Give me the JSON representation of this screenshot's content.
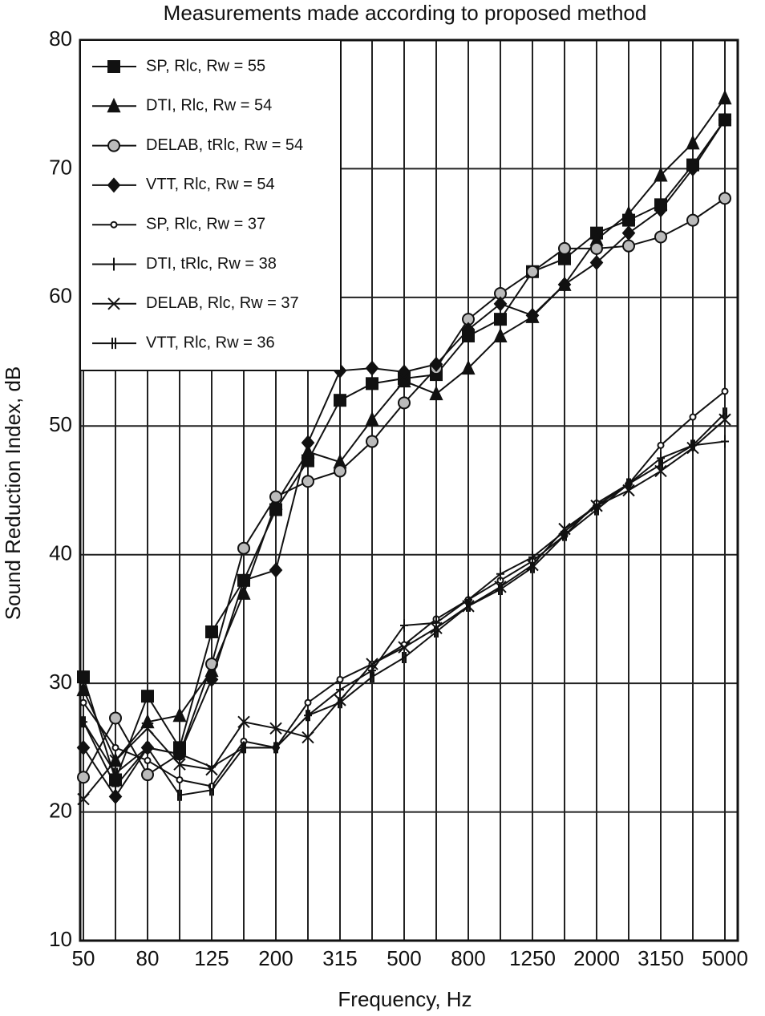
{
  "chart_data": {
    "type": "line",
    "title": "Measurements made according to proposed method",
    "x_label": "Frequency, Hz",
    "y_label": "Sound Reduction Index, dB",
    "categories": [
      50,
      null,
      80,
      null,
      125,
      null,
      200,
      null,
      315,
      null,
      500,
      null,
      800,
      null,
      1250,
      null,
      2000,
      null,
      3150,
      null,
      5000
    ],
    "ylim": [
      10,
      80
    ],
    "yticks": [
      10,
      20,
      30,
      40,
      50,
      60,
      70,
      80
    ],
    "grid": true,
    "legend": "upper left",
    "series": [
      {
        "name": "SP, Rlc, Rw = 55",
        "color": "#111",
        "marker": "square",
        "values": [
          30.5,
          22.5,
          29,
          25,
          34,
          38,
          43.5,
          47.3,
          52,
          53.3,
          53.7,
          54,
          57,
          58.3,
          62,
          63,
          65,
          66,
          67.2,
          70.3,
          73.8
        ]
      },
      {
        "name": "DTI, Rlc, Rw = 54",
        "color": "#111",
        "marker": "triangle",
        "values": [
          29.5,
          24,
          27,
          27.5,
          31,
          37,
          44,
          48,
          47.2,
          50.5,
          53.5,
          52.5,
          54.5,
          57,
          58.5,
          61,
          64.5,
          66.5,
          69.5,
          72,
          75.5
        ]
      },
      {
        "name": "DELAB, tRlc, Rw = 54",
        "color": "#111",
        "marker": "hatched",
        "values": [
          22.7,
          27.3,
          22.9,
          24.5,
          31.5,
          40.5,
          44.5,
          45.7,
          46.5,
          48.8,
          51.8,
          54.5,
          58.3,
          60.3,
          62,
          63.8,
          63.8,
          64,
          64.7,
          66,
          67.7
        ]
      },
      {
        "name": "VTT, Rlc, Rw = 54",
        "color": "#111",
        "marker": "diamond",
        "values": [
          25,
          21.2,
          25,
          24.5,
          30.3,
          38,
          38.8,
          48.7,
          54.3,
          54.5,
          54.2,
          54.8,
          57.5,
          59.5,
          58.6,
          61,
          62.7,
          65,
          66.8,
          70,
          73.8
        ]
      },
      {
        "name": "SP, Rlc, Rw = 37",
        "color": "#111",
        "marker": "circle",
        "values": [
          28.5,
          25,
          24,
          22.5,
          22,
          25.5,
          25,
          28.5,
          30.3,
          31.5,
          33,
          35,
          36.5,
          38,
          39.5,
          41.5,
          44,
          45.5,
          48.5,
          50.7,
          52.7
        ]
      },
      {
        "name": "DTI, tRlc, Rw = 38",
        "color": "#111",
        "marker": "plus",
        "values": [
          27,
          22,
          25,
          24.5,
          23.5,
          25,
          25,
          27.5,
          29.5,
          31,
          34.5,
          34.7,
          36.5,
          38.5,
          39.8,
          41.8,
          43.8,
          45.5,
          47.5,
          48.5,
          48.8
        ]
      },
      {
        "name": "DELAB, Rlc, Rw = 37",
        "color": "#111",
        "marker": "x",
        "values": [
          21,
          24,
          26.5,
          23.7,
          23.3,
          27,
          26.5,
          25.8,
          28.7,
          31.5,
          32.8,
          34.3,
          36,
          37.5,
          39.2,
          42,
          43.8,
          45,
          46.5,
          48.3,
          50.5
        ]
      },
      {
        "name": "VTT, Rlc, Rw = 36",
        "color": "#111",
        "marker": "double",
        "values": [
          27,
          23,
          25,
          21.3,
          21.7,
          25,
          25,
          27.5,
          28.5,
          30.5,
          32,
          34,
          36,
          37.3,
          39,
          41.5,
          43.5,
          45.5,
          47,
          48.5,
          51
        ]
      }
    ]
  }
}
